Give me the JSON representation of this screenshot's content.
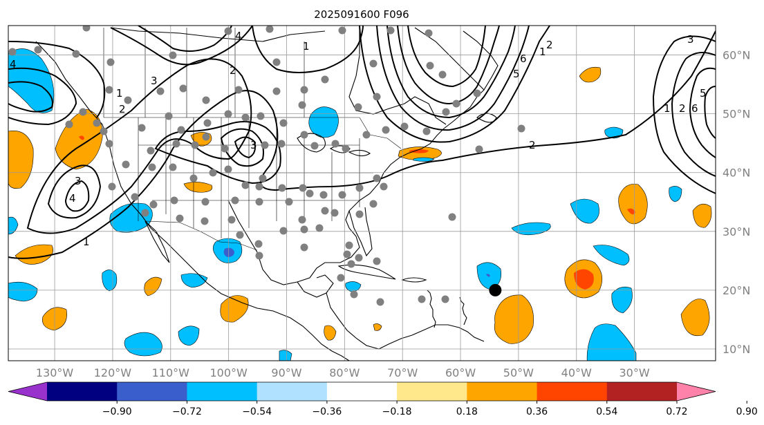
{
  "title": "2025091600 F096",
  "map": {
    "projection": "plate-carree",
    "lon_range": [
      -138,
      -16
    ],
    "lat_range": [
      8,
      65
    ],
    "gridlines": true,
    "lon_labels": [
      "130°W",
      "120°W",
      "110°W",
      "100°W",
      "90°W",
      "80°W",
      "70°W",
      "60°W",
      "50°W",
      "40°W",
      "30°W"
    ],
    "lat_labels": [
      "60°N",
      "50°N",
      "40°N",
      "30°N",
      "20°N",
      "10°N"
    ],
    "background": "#ffffff",
    "coastline_color": "#000000",
    "gridline_color": "#999999",
    "station_marker_color": "#808080",
    "contour_color": "#000000",
    "contour_labels": [
      "1",
      "2",
      "3",
      "4",
      "5",
      "6"
    ],
    "marker": {
      "lon": -54,
      "lat": 20,
      "color": "#000000"
    }
  },
  "colorbar": {
    "ticks": [
      "−0.90",
      "−0.72",
      "−0.54",
      "−0.36",
      "−0.18",
      "0.18",
      "0.36",
      "0.54",
      "0.72",
      "0.90"
    ],
    "colors": [
      "#9932cc",
      "#000080",
      "#3a5fcd",
      "#00bfff",
      "#b0e2ff",
      "#ffffff",
      "#ffe78c",
      "#ffa500",
      "#ff4500",
      "#b22222",
      "#ff82ab"
    ],
    "extend": "both"
  }
}
